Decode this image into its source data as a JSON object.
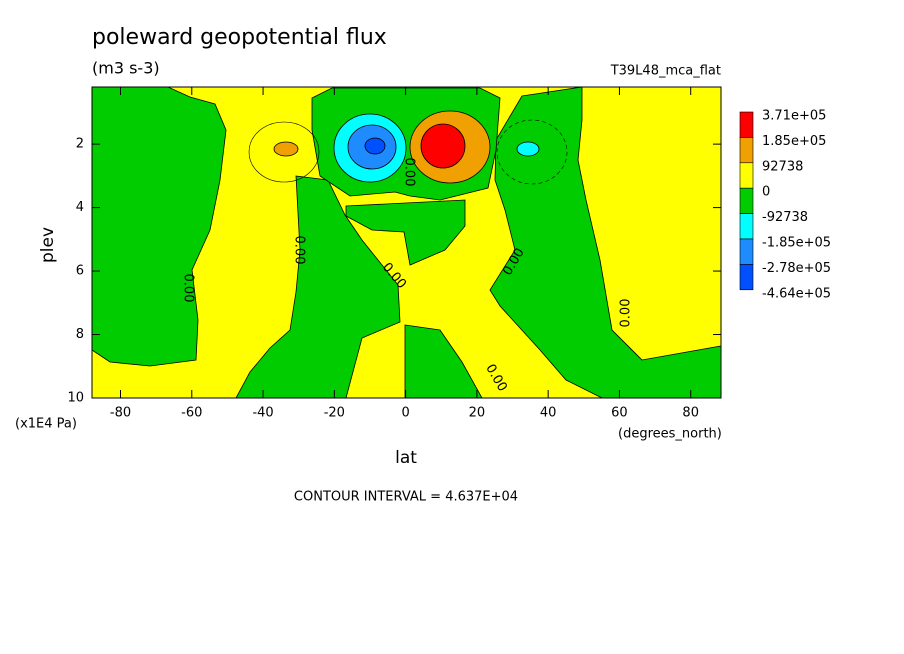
{
  "chart_data": {
    "type": "contour",
    "title": "poleward geopotential flux",
    "subtitle": "(m3 s-3)",
    "dataset": "T39L48_mca_flat",
    "xlabel": "lat",
    "xunits": "(degrees_north)",
    "ylabel": "plev",
    "yunits": "(x1E4 Pa)",
    "footnote": "CONTOUR INTERVAL = 4.637E+04",
    "contour_label": "0.00",
    "xlim": [
      -88,
      88.5
    ],
    "ylim": [
      0.2,
      10
    ],
    "xticks": [
      -80,
      -60,
      -40,
      -20,
      0,
      20,
      40,
      60,
      80
    ],
    "yticks": [
      2,
      4,
      6,
      8,
      10
    ],
    "levels": [
      {
        "value": 371000,
        "label": "3.71e+05"
      },
      {
        "value": 185000,
        "label": "1.85e+05"
      },
      92738,
      0,
      -92738,
      {
        "value": -185000,
        "label": "-1.85e+05"
      },
      {
        "value": -278000,
        "label": "-2.78e+05"
      },
      {
        "value": -464000,
        "label": "-4.64e+05"
      }
    ],
    "colors": [
      "#ff0000",
      "#f0a000",
      "#ffff00",
      "#00cc00",
      "#00ffff",
      "#1e8cff",
      "#0050ff"
    ]
  }
}
